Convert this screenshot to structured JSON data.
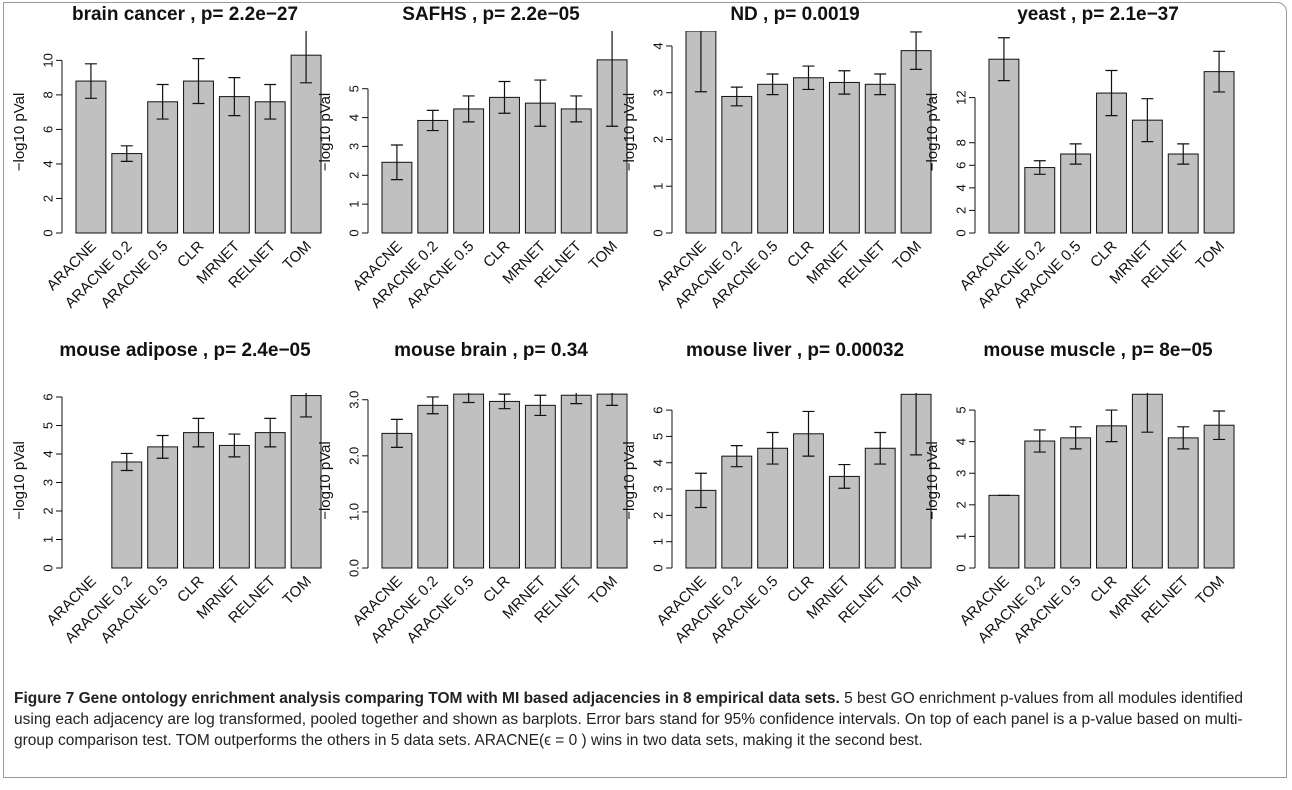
{
  "chart_data": [
    {
      "type": "bar",
      "title": "brain cancer ,  p= 2.2e−27",
      "ylabel": "−log10 pVal",
      "categories": [
        "ARACNE",
        "ARACNE 0.2",
        "ARACNE 0.5",
        "CLR",
        "MRNET",
        "RELNET",
        "TOM"
      ],
      "values": [
        8.8,
        4.6,
        7.6,
        8.8,
        7.9,
        7.6,
        10.3
      ],
      "errors": [
        1.0,
        0.45,
        1.0,
        1.3,
        1.1,
        1.0,
        1.6
      ],
      "color": "#c0c0c0",
      "ylim": [
        0,
        11.7
      ],
      "yticks": [
        0,
        2,
        4,
        6,
        8,
        10
      ]
    },
    {
      "type": "bar",
      "title": "SAFHS ,  p= 2.2e−05",
      "ylabel": "−log10 pVal",
      "categories": [
        "ARACNE",
        "ARACNE 0.2",
        "ARACNE 0.5",
        "CLR",
        "MRNET",
        "RELNET",
        "TOM"
      ],
      "values": [
        2.45,
        3.9,
        4.3,
        4.7,
        4.5,
        4.3,
        6.0
      ],
      "errors": [
        0.6,
        0.35,
        0.45,
        0.55,
        0.8,
        0.45,
        2.3
      ],
      "color": "#c0c0c0",
      "ylim": [
        0,
        7.0
      ],
      "yticks": [
        0,
        1,
        2,
        3,
        4,
        5
      ]
    },
    {
      "type": "bar",
      "title": "ND ,  p= 0.0019",
      "ylabel": "−log10 pVal",
      "categories": [
        "ARACNE",
        "ARACNE 0.2",
        "ARACNE 0.5",
        "CLR",
        "MRNET",
        "RELNET",
        "TOM"
      ],
      "values": [
        4.32,
        2.92,
        3.18,
        3.32,
        3.22,
        3.18,
        3.9
      ],
      "errors": [
        1.3,
        0.2,
        0.22,
        0.25,
        0.25,
        0.22,
        0.4
      ],
      "color": "#c0c0c0",
      "ylim": [
        0,
        4.32
      ],
      "yticks": [
        0,
        1,
        2,
        3,
        4
      ]
    },
    {
      "type": "bar",
      "title": "yeast ,  p= 2.1e−37",
      "ylabel": "−log10 pVal",
      "categories": [
        "ARACNE",
        "ARACNE 0.2",
        "ARACNE 0.5",
        "CLR",
        "MRNET",
        "RELNET",
        "TOM"
      ],
      "values": [
        15.4,
        5.8,
        7.0,
        12.4,
        10.0,
        7.0,
        14.3
      ],
      "errors": [
        1.9,
        0.6,
        0.9,
        2.0,
        1.9,
        0.9,
        1.8
      ],
      "color": "#c0c0c0",
      "ylim": [
        0,
        17.9
      ],
      "yticks": [
        0,
        2,
        4,
        6,
        8,
        12
      ]
    },
    {
      "type": "bar",
      "title": "mouse adipose ,  p= 2.4e−05",
      "ylabel": "−log10 pVal",
      "categories": [
        "ARACNE",
        "ARACNE 0.2",
        "ARACNE 0.5",
        "CLR",
        "MRNET",
        "RELNET",
        "TOM"
      ],
      "values": [
        null,
        3.72,
        4.25,
        4.75,
        4.3,
        4.75,
        6.05
      ],
      "errors": [
        null,
        0.3,
        0.4,
        0.5,
        0.4,
        0.5,
        0.75
      ],
      "color": "#c0c0c0",
      "ylim": [
        0,
        6.14
      ],
      "yticks": [
        0,
        1,
        2,
        3,
        4,
        5,
        6
      ]
    },
    {
      "type": "bar",
      "title": "mouse brain ,  p= 0.34",
      "ylabel": "−log10 pVal",
      "categories": [
        "ARACNE",
        "ARACNE 0.2",
        "ARACNE 0.5",
        "CLR",
        "MRNET",
        "RELNET",
        "TOM"
      ],
      "values": [
        2.4,
        2.9,
        3.1,
        2.97,
        2.9,
        3.08,
        3.1
      ],
      "errors": [
        0.25,
        0.15,
        0.15,
        0.13,
        0.18,
        0.15,
        0.2
      ],
      "color": "#c0c0c0",
      "ylim": [
        0,
        3.12
      ],
      "yticks": [
        {
          "value": 0,
          "label": "0.0"
        },
        {
          "value": 1,
          "label": "1.0"
        },
        {
          "value": 2,
          "label": "2.0"
        },
        {
          "value": 3,
          "label": "3.0"
        }
      ]
    },
    {
      "type": "bar",
      "title": "mouse liver ,  p= 0.00032",
      "ylabel": "−log10 pVal",
      "categories": [
        "ARACNE",
        "ARACNE 0.2",
        "ARACNE 0.5",
        "CLR",
        "MRNET",
        "RELNET",
        "TOM"
      ],
      "values": [
        2.95,
        4.25,
        4.55,
        5.1,
        3.48,
        4.55,
        6.6
      ],
      "errors": [
        0.65,
        0.4,
        0.6,
        0.85,
        0.45,
        0.6,
        2.3
      ],
      "color": "#c0c0c0",
      "ylim": [
        0,
        6.65
      ],
      "yticks": [
        0,
        1,
        2,
        3,
        4,
        5,
        6
      ]
    },
    {
      "type": "bar",
      "title": "mouse muscle ,  p= 8e−05",
      "ylabel": "−log10 pVal",
      "categories": [
        "ARACNE",
        "ARACNE 0.2",
        "ARACNE 0.5",
        "CLR",
        "MRNET",
        "RELNET",
        "TOM"
      ],
      "values": [
        2.3,
        4.02,
        4.12,
        4.5,
        5.5,
        4.12,
        4.52
      ],
      "errors": [
        0,
        0.35,
        0.35,
        0.5,
        1.2,
        0.35,
        0.45
      ],
      "color": "#c0c0c0",
      "ylim": [
        0,
        5.54
      ],
      "yticks": [
        0,
        1,
        2,
        3,
        4,
        5
      ]
    }
  ],
  "caption": {
    "label": "Figure 7",
    "title": "Gene ontology enrichment analysis comparing TOM with MI based adjacencies in 8 empirical data sets.",
    "text": "5 best GO enrichment p-values from all modules identified using each adjacency are log transformed, pooled together and shown as barplots. Error bars stand for 95% confidence intervals. On top of each panel is a p-value based on multi-group comparison test. TOM outperforms the others in 5 data sets. ARACNE(ϵ = 0 ) wins in two data sets, making it the second best."
  }
}
